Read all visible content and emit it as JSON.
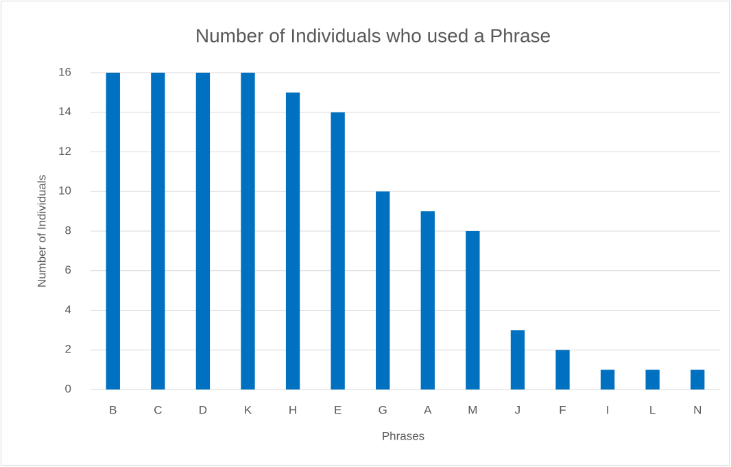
{
  "chart_data": {
    "type": "bar",
    "title": "Number of Individuals who used a Phrase",
    "x_label": "Phrases",
    "y_label": "Number of Individuals",
    "categories": [
      "B",
      "C",
      "D",
      "K",
      "H",
      "E",
      "G",
      "A",
      "M",
      "J",
      "F",
      "I",
      "L",
      "N"
    ],
    "values": [
      16,
      16,
      16,
      16,
      15,
      14,
      10,
      9,
      8,
      3,
      2,
      1,
      1,
      1
    ],
    "color": "#0070c0",
    "ylim": [
      0,
      16
    ],
    "yticks": [
      0,
      2,
      4,
      6,
      8,
      10,
      12,
      14,
      16
    ],
    "grid": true
  }
}
